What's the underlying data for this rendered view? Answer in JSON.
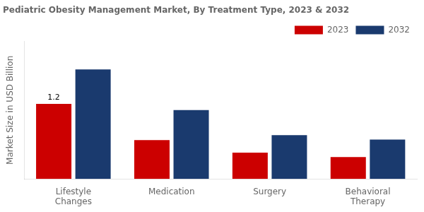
{
  "chart_data": {
    "type": "bar",
    "title": "Pediatric Obesity Management Market, By Treatment Type, 2023 & 2032",
    "ylabel": "Market Size in USD Billion",
    "categories": [
      "Lifestyle\nChanges",
      "Medication",
      "Surgery",
      "Behavioral\nTherapy"
    ],
    "series": [
      {
        "name": "2023",
        "color": "#cc0000",
        "values": [
          1.2,
          0.62,
          0.42,
          0.35
        ]
      },
      {
        "name": "2032",
        "color": "#1a3a6e",
        "values": [
          1.75,
          1.1,
          0.7,
          0.63
        ]
      }
    ],
    "annotations": [
      {
        "text": "1.2",
        "series": "2023",
        "category": "Lifestyle\nChanges"
      }
    ],
    "ylim": [
      0,
      2.2
    ],
    "yticks": [],
    "tick_labels": "x",
    "grid": false,
    "legend": "upper right"
  }
}
